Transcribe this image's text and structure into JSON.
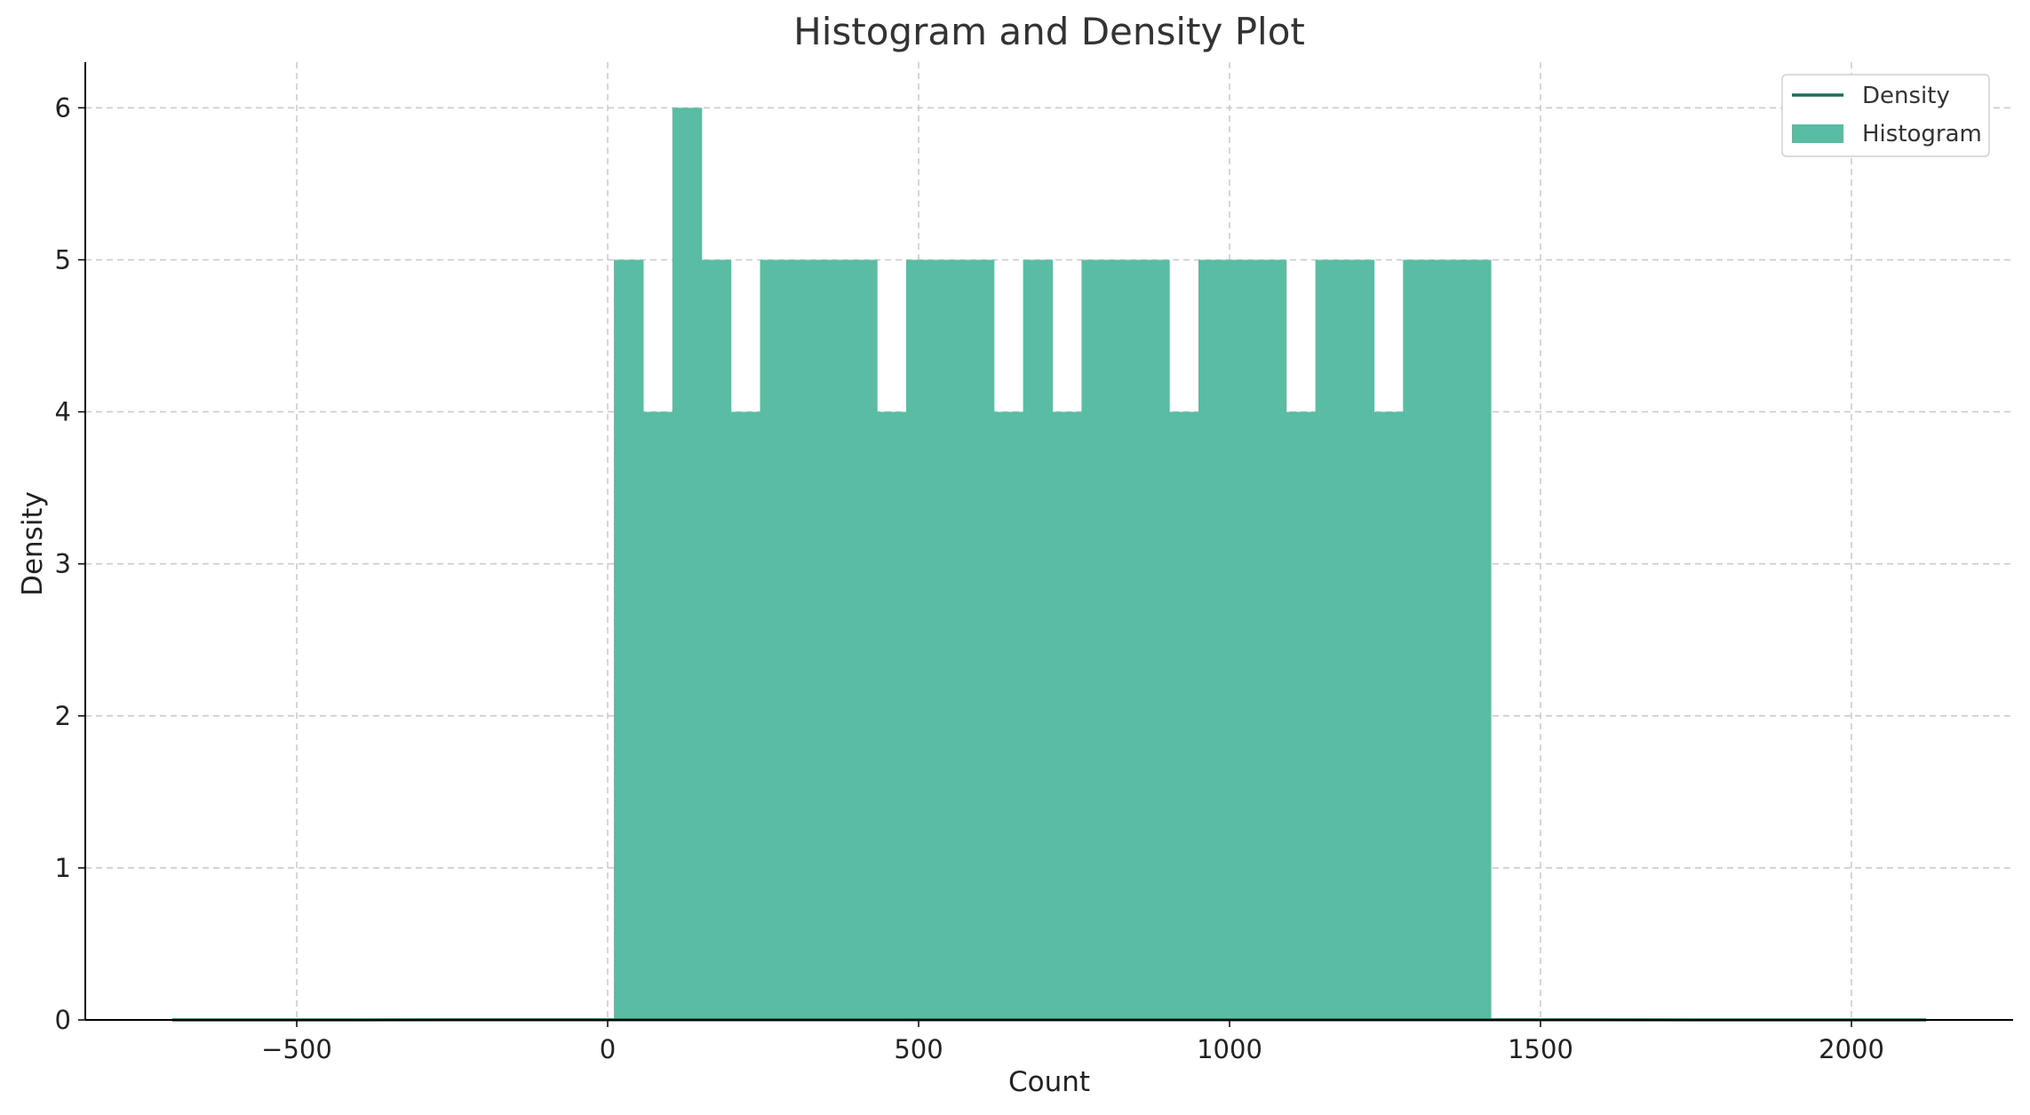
{
  "chart_data": {
    "type": "bar",
    "title": "Histogram and Density Plot",
    "xlabel": "Count",
    "ylabel": "Density",
    "xlim": [
      -840,
      2260
    ],
    "ylim": [
      0,
      6.3
    ],
    "xticks": [
      -500,
      0,
      500,
      1000,
      1500,
      2000
    ],
    "xtick_labels": [
      "−500",
      "0",
      "500",
      "1000",
      "1500",
      "2000"
    ],
    "yticks": [
      0,
      1,
      2,
      3,
      4,
      5,
      6
    ],
    "ytick_labels": [
      "0",
      "1",
      "2",
      "3",
      "4",
      "5",
      "6"
    ],
    "grid": true,
    "legend_position": "top-right",
    "histogram": {
      "name": "Histogram",
      "color": "#5abca3",
      "bin_start": 10,
      "bin_width": 47,
      "counts": [
        5,
        4,
        6,
        5,
        4,
        5,
        5,
        5,
        5,
        4,
        5,
        5,
        5,
        4,
        5,
        4,
        5,
        5,
        5,
        4,
        5,
        5,
        5,
        4,
        5,
        5,
        4,
        5,
        5,
        5
      ]
    },
    "density": {
      "name": "Density",
      "color": "#1a6e58",
      "x": [
        -700,
        -400,
        0,
        500,
        1000,
        1500,
        2120
      ],
      "y": [
        0.0001,
        0.0003,
        0.0006,
        0.0007,
        0.0007,
        0.0005,
        0.0001
      ]
    },
    "legend": [
      {
        "label": "Density",
        "type": "line",
        "color": "#1a6e58"
      },
      {
        "label": "Histogram",
        "type": "patch",
        "color": "#5abca3"
      }
    ]
  }
}
